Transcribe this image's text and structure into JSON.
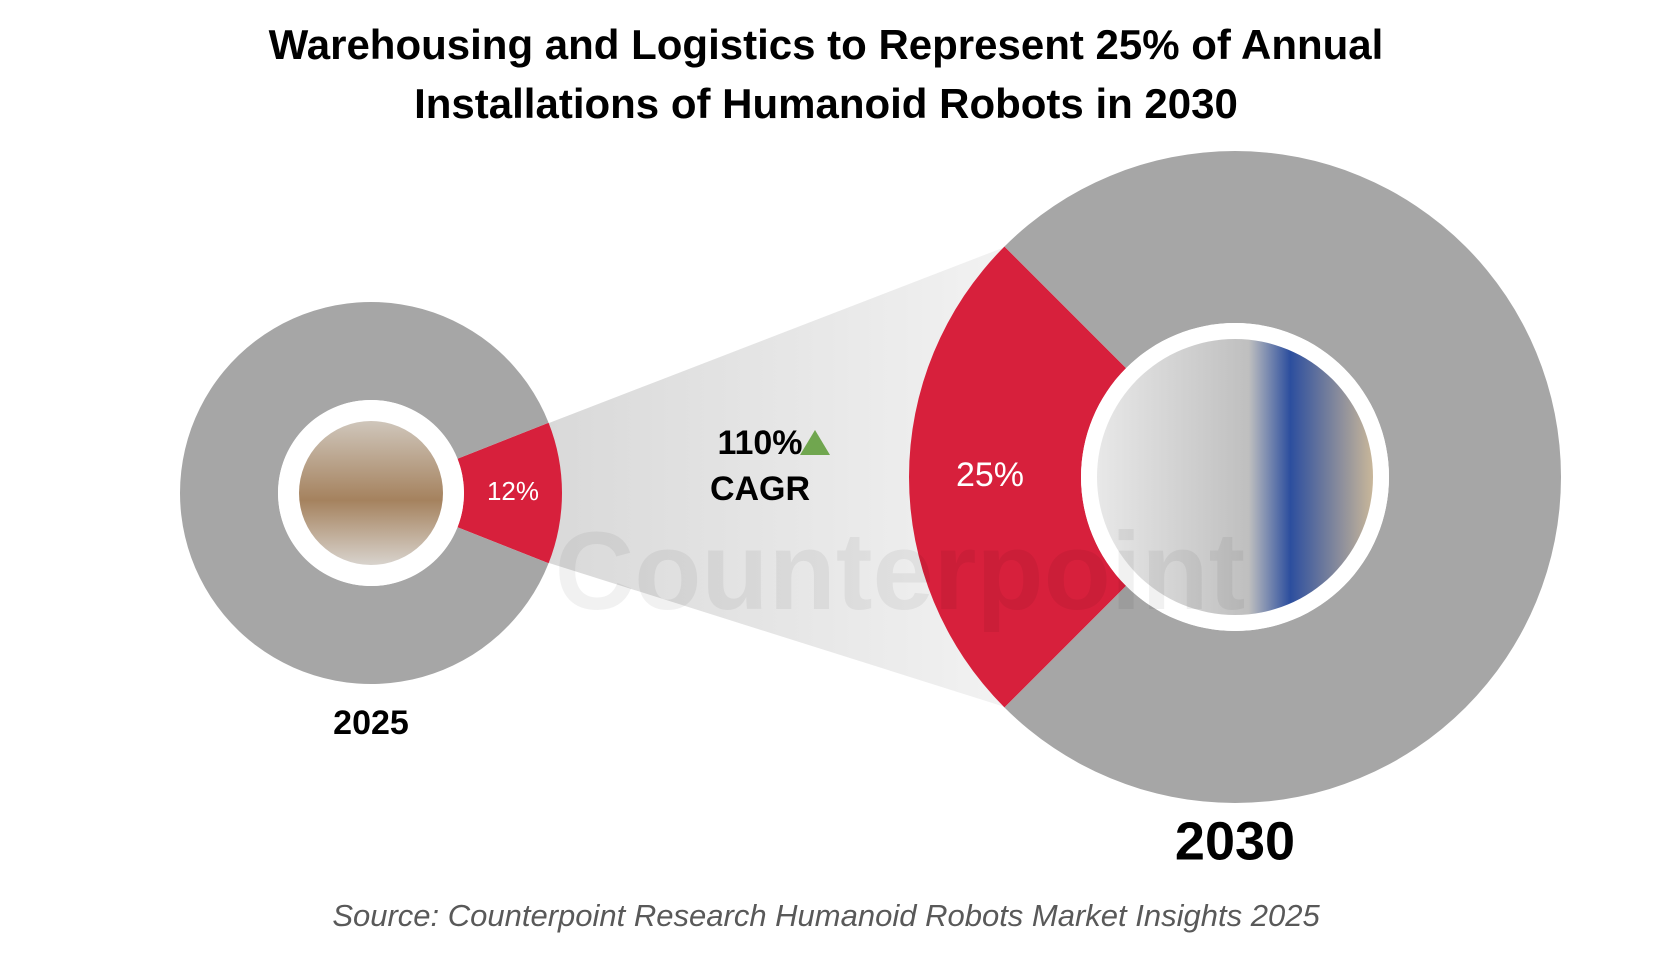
{
  "title": [
    "Warehousing and Logistics to Represent 25% of Annual",
    "Installations of Humanoid Robots in 2030"
  ],
  "annotation": {
    "text": "110%",
    "label": "CAGR"
  },
  "watermark": "Counterpoint",
  "source": "Source: Counterpoint Research Humanoid Robots Market Insights 2025",
  "chart_data": [
    {
      "type": "donut",
      "label": "2025",
      "values": [
        12,
        88
      ],
      "value_labels": [
        "12%",
        null
      ],
      "colors": [
        "#d7203c",
        "#a6a6a6"
      ]
    },
    {
      "type": "donut",
      "label": "2030",
      "values": [
        25,
        75
      ],
      "value_labels": [
        "25%",
        null
      ],
      "colors": [
        "#d7203c",
        "#a6a6a6"
      ]
    }
  ]
}
